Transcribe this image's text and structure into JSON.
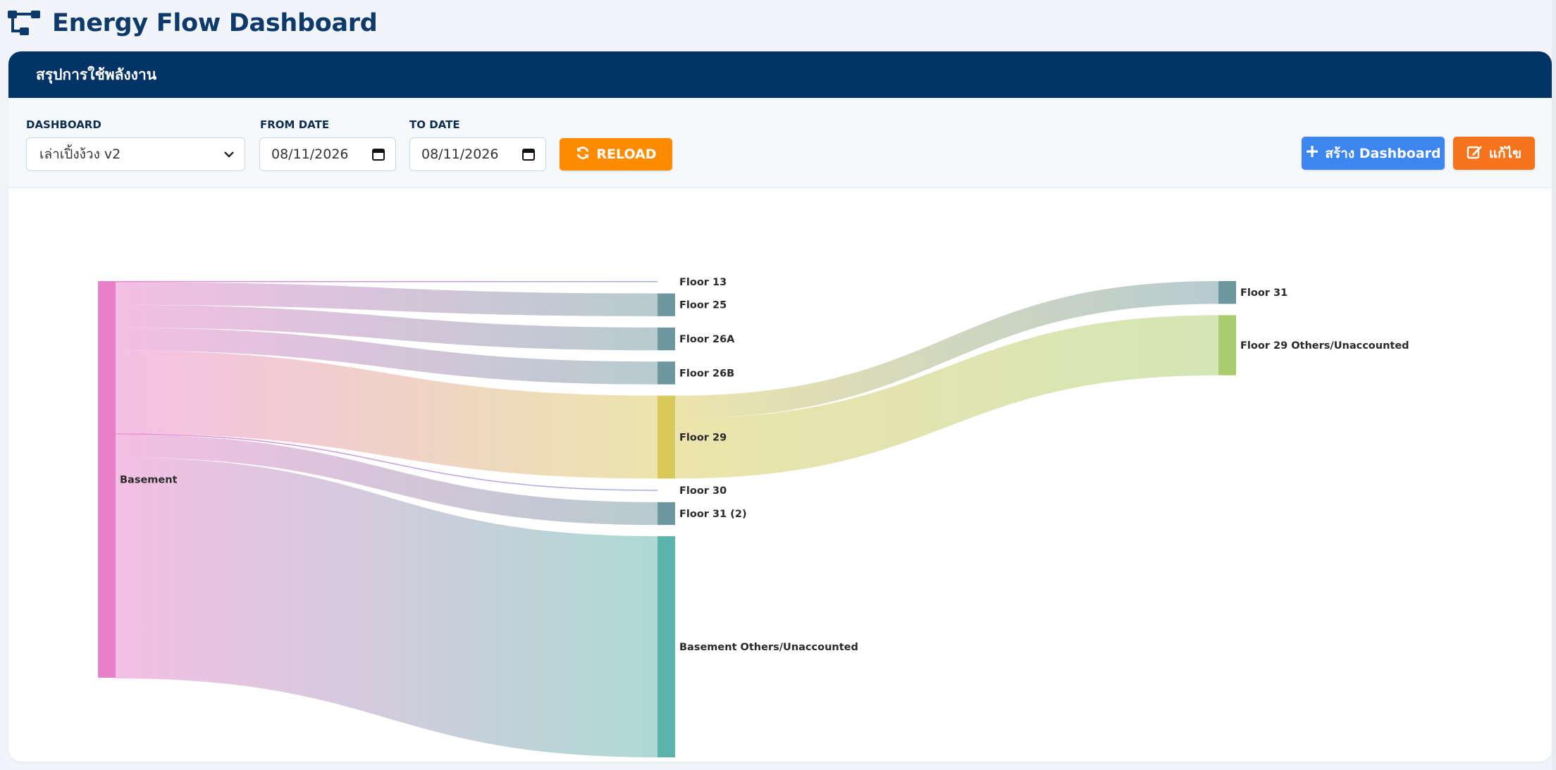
{
  "app": {
    "title": "Energy Flow Dashboard",
    "logo_icon": "sitemap-icon"
  },
  "card": {
    "header_title": "สรุปการใช้พลังงาน"
  },
  "filters": {
    "dashboard_label": "DASHBOARD",
    "dashboard_value": "เล่าเปิ้งง้วง v2",
    "from_label": "FROM DATE",
    "from_value": "08/11/2026",
    "to_label": "TO DATE",
    "to_value": "08/11/2026"
  },
  "buttons": {
    "reload": "RELOAD",
    "reload_icon": "refresh-icon",
    "create": "สร้าง Dashboard",
    "create_icon": "plus-icon",
    "edit": "แก้ไข",
    "edit_icon": "edit-icon"
  },
  "colors": {
    "header_bg": "#023366",
    "reload": "#ff8c00",
    "create": "#3d86f0",
    "edit": "#f5731c"
  },
  "chart_data": {
    "type": "sankey",
    "nodes": [
      {
        "id": "basement",
        "label": "Basement",
        "color": "#e97fc9"
      },
      {
        "id": "f13",
        "label": "Floor 13",
        "color": "#9aa6e8"
      },
      {
        "id": "f25",
        "label": "Floor 25",
        "color": "#6f97a0"
      },
      {
        "id": "f26a",
        "label": "Floor 26A",
        "color": "#6f97a0"
      },
      {
        "id": "f26b",
        "label": "Floor 26B",
        "color": "#6f97a0"
      },
      {
        "id": "f29",
        "label": "Floor 29",
        "color": "#d9c95a"
      },
      {
        "id": "f30",
        "label": "Floor 30",
        "color": "#9aa6e8"
      },
      {
        "id": "f31b",
        "label": "Floor 31 (2)",
        "color": "#6f97a0"
      },
      {
        "id": "bother",
        "label": "Basement Others/Unaccounted",
        "color": "#5cb3ab"
      },
      {
        "id": "f31",
        "label": "Floor 31",
        "color": "#6f97a0"
      },
      {
        "id": "f29other",
        "label": "Floor 29 Others/Unaccounted",
        "color": "#a9cc6c"
      }
    ],
    "links": [
      {
        "source": "basement",
        "target": "f13",
        "value": 0.1
      },
      {
        "source": "basement",
        "target": "f25",
        "value": 3.3
      },
      {
        "source": "basement",
        "target": "f26a",
        "value": 3.3
      },
      {
        "source": "basement",
        "target": "f26b",
        "value": 3.3
      },
      {
        "source": "basement",
        "target": "f29",
        "value": 12
      },
      {
        "source": "basement",
        "target": "f30",
        "value": 0.1
      },
      {
        "source": "basement",
        "target": "f31b",
        "value": 3.3
      },
      {
        "source": "basement",
        "target": "bother",
        "value": 32
      },
      {
        "source": "f29",
        "target": "f31",
        "value": 3.3
      },
      {
        "source": "f29",
        "target": "f29other",
        "value": 8.7
      }
    ]
  }
}
